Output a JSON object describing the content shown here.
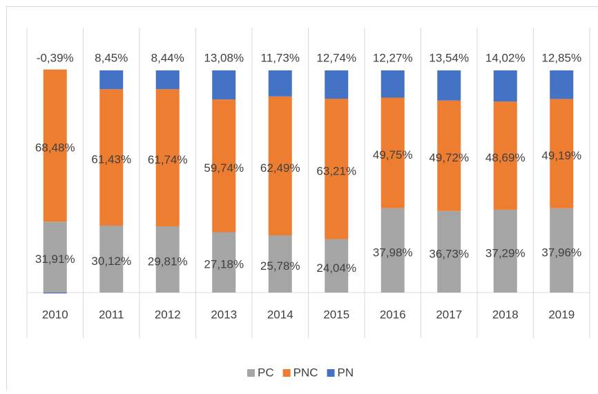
{
  "chart_data": {
    "type": "stacked_bar",
    "categories": [
      "2010",
      "2011",
      "2012",
      "2013",
      "2014",
      "2015",
      "2016",
      "2017",
      "2018",
      "2019"
    ],
    "ylim": [
      0,
      100
    ],
    "legend": "bottom",
    "series": [
      {
        "name": "PC",
        "color": "#a5a5a5",
        "values": [
          31.91,
          30.12,
          29.81,
          27.18,
          25.78,
          24.04,
          37.98,
          36.73,
          37.29,
          37.96
        ],
        "value_labels": [
          "31,91%",
          "30,12%",
          "29,81%",
          "27,18%",
          "25,78%",
          "24,04%",
          "37,98%",
          "36,73%",
          "37,29%",
          "37,96%"
        ]
      },
      {
        "name": "PNC",
        "color": "#ed7d31",
        "values": [
          68.48,
          61.43,
          61.74,
          59.74,
          62.49,
          63.21,
          49.75,
          49.72,
          48.69,
          49.19
        ],
        "value_labels": [
          "68,48%",
          "61,43%",
          "61,74%",
          "59,74%",
          "62,49%",
          "63,21%",
          "49,75%",
          "49,72%",
          "48,69%",
          "49,19%"
        ]
      },
      {
        "name": "PN",
        "color": "#4472c4",
        "values": [
          -0.39,
          8.45,
          8.44,
          13.08,
          11.73,
          12.74,
          12.27,
          13.54,
          14.02,
          12.85
        ],
        "value_labels": [
          "-0,39%",
          "8,45%",
          "8,44%",
          "13,08%",
          "11,73%",
          "12,74%",
          "12,27%",
          "13,54%",
          "14,02%",
          "12,85%"
        ]
      }
    ]
  }
}
